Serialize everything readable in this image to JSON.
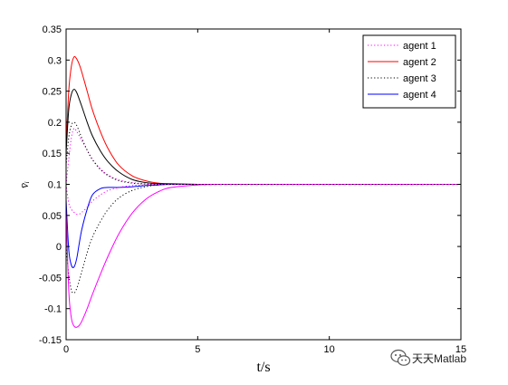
{
  "chart_data": {
    "type": "line",
    "title": "",
    "xlabel": "t/s",
    "ylabel": "v̄ᵢ",
    "xlim": [
      0,
      15
    ],
    "ylim": [
      -0.15,
      0.35
    ],
    "xticks": [
      "0",
      "5",
      "10",
      "15"
    ],
    "xtick_values": [
      0,
      5,
      10,
      15
    ],
    "yticks": [
      "-0.15",
      "-0.1",
      "-0.05",
      "0",
      "0.05",
      "0.1",
      "0.15",
      "0.2",
      "0.25",
      "0.3",
      "0.35"
    ],
    "ytick_values": [
      -0.15,
      -0.1,
      -0.05,
      0,
      0.05,
      0.1,
      0.15,
      0.2,
      0.25,
      0.3,
      0.35
    ],
    "grid": false,
    "legend_position": "top-right",
    "x": [
      0,
      0.1,
      0.2,
      0.3,
      0.4,
      0.5,
      0.6,
      0.8,
      1.0,
      1.3,
      1.6,
      2.0,
      2.5,
      3.0,
      3.5,
      4.0,
      5.0,
      6.0,
      8.0,
      10.0,
      12.0,
      15.0
    ],
    "series": [
      {
        "name": "agent 1",
        "color": "#ff00ff",
        "style": "dotted",
        "values": [
          0.1,
          0.14,
          0.175,
          0.19,
          0.185,
          0.178,
          0.17,
          0.155,
          0.14,
          0.125,
          0.115,
          0.107,
          0.103,
          0.101,
          0.1005,
          0.1002,
          0.1,
          0.1,
          0.1,
          0.1,
          0.1,
          0.1
        ]
      },
      {
        "name": "agent 2",
        "color": "#ff0000",
        "style": "solid",
        "values": [
          0.16,
          0.25,
          0.29,
          0.305,
          0.302,
          0.293,
          0.28,
          0.25,
          0.22,
          0.185,
          0.157,
          0.131,
          0.114,
          0.106,
          0.102,
          0.101,
          0.1,
          0.1,
          0.1,
          0.1,
          0.1,
          0.1
        ]
      },
      {
        "name": "agent 3",
        "color": "#000000",
        "style": "dotted",
        "values": [
          0.0,
          -0.045,
          -0.07,
          -0.075,
          -0.068,
          -0.055,
          -0.04,
          -0.01,
          0.015,
          0.04,
          0.06,
          0.078,
          0.09,
          0.096,
          0.099,
          0.1,
          0.1,
          0.1,
          0.1,
          0.1,
          0.1,
          0.1
        ]
      },
      {
        "name": "agent 4",
        "color": "#0000ff",
        "style": "solid",
        "values": [
          0.075,
          -0.005,
          -0.03,
          -0.033,
          -0.02,
          0.005,
          0.028,
          0.06,
          0.083,
          0.093,
          0.095,
          0.095,
          0.096,
          0.098,
          0.099,
          0.1,
          0.1,
          0.1,
          0.1,
          0.1,
          0.1,
          0.1
        ]
      },
      {
        "color": "#000000",
        "style": "solid",
        "values": [
          0.15,
          0.22,
          0.245,
          0.253,
          0.248,
          0.237,
          0.225,
          0.2,
          0.178,
          0.154,
          0.136,
          0.12,
          0.108,
          0.103,
          0.101,
          0.1005,
          0.1,
          0.1,
          0.1,
          0.1,
          0.1,
          0.1
        ]
      },
      {
        "color": "#ff00ff",
        "style": "solid",
        "values": [
          0.06,
          -0.07,
          -0.115,
          -0.128,
          -0.13,
          -0.127,
          -0.12,
          -0.1,
          -0.077,
          -0.045,
          -0.015,
          0.02,
          0.053,
          0.075,
          0.088,
          0.095,
          0.099,
          0.1,
          0.1,
          0.1,
          0.1,
          0.1
        ]
      },
      {
        "color": "#ff00ff",
        "style": "dotted",
        "values": [
          0.1,
          0.07,
          0.06,
          0.055,
          0.052,
          0.052,
          0.055,
          0.063,
          0.073,
          0.083,
          0.09,
          0.095,
          0.098,
          0.099,
          0.1,
          0.1,
          0.1,
          0.1,
          0.1,
          0.1,
          0.1,
          0.1
        ]
      },
      {
        "color": "#000000",
        "style": "dotted",
        "values": [
          0.13,
          0.175,
          0.195,
          0.2,
          0.195,
          0.185,
          0.174,
          0.155,
          0.14,
          0.124,
          0.114,
          0.106,
          0.102,
          0.1005,
          0.1,
          0.1,
          0.1,
          0.1,
          0.1,
          0.1,
          0.1,
          0.1
        ]
      }
    ]
  },
  "watermark": {
    "icon": "wechat-icon",
    "text": "天天Matlab"
  }
}
